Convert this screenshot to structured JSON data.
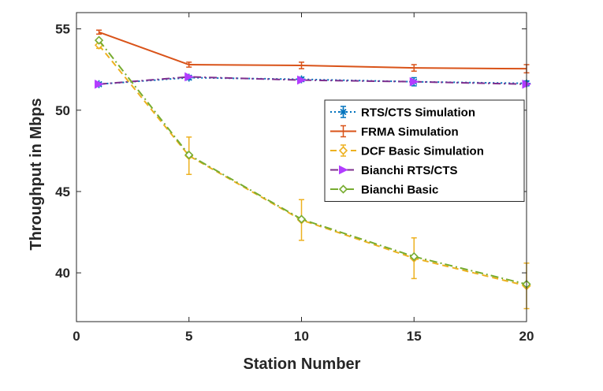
{
  "chart_data": {
    "type": "line",
    "title": "",
    "xlabel": "Station Number",
    "ylabel": "Throughput in Mbps",
    "xlim": [
      0,
      20
    ],
    "ylim": [
      37,
      56
    ],
    "xticks": [
      0,
      5,
      10,
      15,
      20
    ],
    "yticks": [
      40,
      45,
      50,
      55
    ],
    "grid": false,
    "legend_position": "center-right",
    "x": [
      1,
      5,
      10,
      15,
      20
    ],
    "series": [
      {
        "name": "RTS/CTS Simulation",
        "values": [
          51.6,
          52.0,
          51.9,
          51.75,
          51.65
        ],
        "error": [
          0.1,
          0.12,
          0.12,
          0.25,
          0.15
        ],
        "color": "#0072BD",
        "line_style": "dotted",
        "marker": "star"
      },
      {
        "name": "FRMA Simulation",
        "values": [
          54.8,
          52.8,
          52.75,
          52.6,
          52.55
        ],
        "error": [
          0.12,
          0.15,
          0.2,
          0.2,
          0.25
        ],
        "color": "#D95319",
        "line_style": "solid",
        "marker": "none"
      },
      {
        "name": "DCF Basic Simulation",
        "values": [
          54.0,
          47.2,
          43.25,
          40.9,
          39.2
        ],
        "error": [
          0.2,
          1.15,
          1.25,
          1.25,
          1.4
        ],
        "color": "#EDB120",
        "line_style": "dashed",
        "marker": "diamond-open"
      },
      {
        "name": "Bianchi RTS/CTS",
        "values": [
          51.6,
          52.05,
          51.85,
          51.75,
          51.6
        ],
        "color": "#7E2F8E",
        "marker_color": "#B23CFF",
        "line_style": "dashdot",
        "marker": "triangle-right"
      },
      {
        "name": "Bianchi Basic",
        "values": [
          54.3,
          47.25,
          43.3,
          41.0,
          39.3
        ],
        "color": "#77AC30",
        "line_style": "dashdot",
        "marker": "diamond-open"
      }
    ]
  }
}
